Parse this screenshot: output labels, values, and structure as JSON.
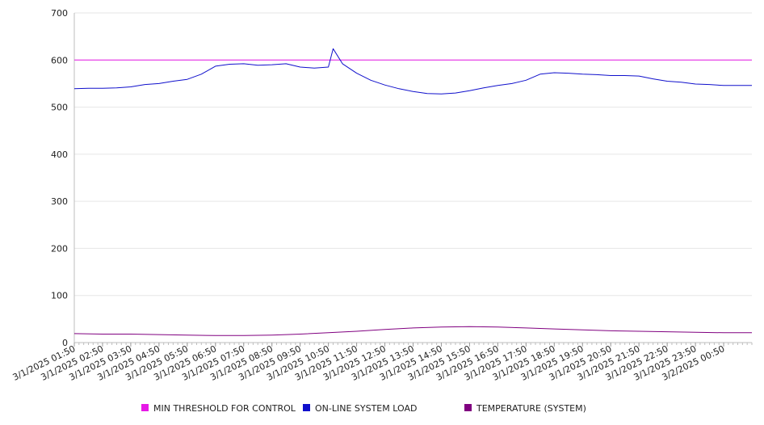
{
  "chart_data": {
    "type": "line",
    "title": "",
    "xlabel": "",
    "ylabel": "",
    "ylim": [
      0,
      700
    ],
    "yticks": [
      "0",
      "100",
      "200",
      "300",
      "400",
      "500",
      "600",
      "700"
    ],
    "x_tick_labels": [
      "3/1/2025 01:50",
      "3/1/2025 02:50",
      "3/1/2025 03:50",
      "3/1/2025 04:50",
      "3/1/2025 05:50",
      "3/1/2025 06:50",
      "3/1/2025 07:50",
      "3/1/2025 08:50",
      "3/1/2025 09:50",
      "3/1/2025 10:50",
      "3/1/2025 11:50",
      "3/1/2025 12:50",
      "3/1/2025 13:50",
      "3/1/2025 14:50",
      "3/1/2025 15:50",
      "3/1/2025 16:50",
      "3/1/2025 17:50",
      "3/1/2025 18:50",
      "3/1/2025 19:50",
      "3/1/2025 20:50",
      "3/1/2025 21:50",
      "3/1/2025 22:50",
      "3/1/2025 23:50",
      "3/2/2025 00:50"
    ],
    "x_start": "3/1/2025 01:50",
    "x_end": "3/2/2025 01:50",
    "grid": "horizontal",
    "legend_position": "bottom",
    "series": [
      {
        "name": "MIN THRESHOLD FOR CONTROL",
        "color": "#e619e6",
        "x": [
          "3/1/2025 01:50",
          "3/2/2025 01:50"
        ],
        "values": [
          600,
          600
        ]
      },
      {
        "name": "ON-LINE SYSTEM LOAD",
        "color": "#1010cc",
        "x": [
          "3/1/2025 01:50",
          "3/1/2025 02:20",
          "3/1/2025 02:50",
          "3/1/2025 03:20",
          "3/1/2025 03:50",
          "3/1/2025 04:20",
          "3/1/2025 04:50",
          "3/1/2025 05:20",
          "3/1/2025 05:50",
          "3/1/2025 06:20",
          "3/1/2025 06:50",
          "3/1/2025 07:20",
          "3/1/2025 07:50",
          "3/1/2025 08:20",
          "3/1/2025 08:50",
          "3/1/2025 09:20",
          "3/1/2025 09:50",
          "3/1/2025 10:20",
          "3/1/2025 10:50",
          "3/1/2025 11:00",
          "3/1/2025 11:20",
          "3/1/2025 11:50",
          "3/1/2025 12:20",
          "3/1/2025 12:50",
          "3/1/2025 13:20",
          "3/1/2025 13:50",
          "3/1/2025 14:20",
          "3/1/2025 14:50",
          "3/1/2025 15:20",
          "3/1/2025 15:50",
          "3/1/2025 16:20",
          "3/1/2025 16:50",
          "3/1/2025 17:20",
          "3/1/2025 17:50",
          "3/1/2025 18:20",
          "3/1/2025 18:50",
          "3/1/2025 19:20",
          "3/1/2025 19:50",
          "3/1/2025 20:20",
          "3/1/2025 20:50",
          "3/1/2025 21:20",
          "3/1/2025 21:50",
          "3/1/2025 22:20",
          "3/1/2025 22:50",
          "3/1/2025 23:20",
          "3/1/2025 23:50",
          "3/2/2025 00:20",
          "3/2/2025 00:50",
          "3/2/2025 01:20",
          "3/2/2025 01:50"
        ],
        "values": [
          539,
          540,
          540,
          541,
          543,
          548,
          550,
          555,
          559,
          570,
          587,
          591,
          592,
          589,
          590,
          592,
          585,
          583,
          585,
          624,
          592,
          572,
          557,
          547,
          539,
          533,
          529,
          528,
          530,
          535,
          541,
          546,
          550,
          557,
          570,
          573,
          572,
          570,
          569,
          567,
          567,
          566,
          560,
          555,
          553,
          549,
          548,
          546,
          546,
          546
        ]
      },
      {
        "name": "TEMPERATURE (SYSTEM)",
        "color": "#800080",
        "x": [
          "3/1/2025 01:50",
          "3/1/2025 02:50",
          "3/1/2025 03:50",
          "3/1/2025 04:50",
          "3/1/2025 05:50",
          "3/1/2025 06:50",
          "3/1/2025 07:50",
          "3/1/2025 08:50",
          "3/1/2025 09:50",
          "3/1/2025 10:50",
          "3/1/2025 11:50",
          "3/1/2025 12:50",
          "3/1/2025 13:50",
          "3/1/2025 14:50",
          "3/1/2025 15:50",
          "3/1/2025 16:50",
          "3/1/2025 17:50",
          "3/1/2025 18:50",
          "3/1/2025 19:50",
          "3/1/2025 20:50",
          "3/1/2025 21:50",
          "3/1/2025 22:50",
          "3/1/2025 23:50",
          "3/2/2025 00:50",
          "3/2/2025 01:50"
        ],
        "values": [
          19,
          18,
          18,
          17,
          16,
          15,
          15,
          16,
          18,
          21,
          24,
          28,
          31,
          33,
          34,
          33,
          31,
          29,
          27,
          25,
          24,
          23,
          22,
          21,
          21
        ]
      }
    ]
  }
}
